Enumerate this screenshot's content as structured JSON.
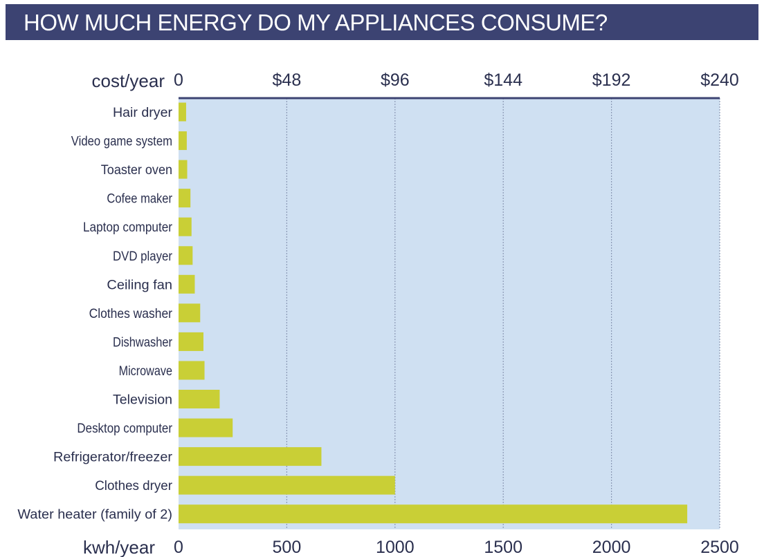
{
  "header": {
    "title": "HOW MUCH ENERGY DO MY APPLIANCES CONSUME?"
  },
  "colors": {
    "title_bg": "#3c4372",
    "plot_bg": "#cfe0f2",
    "bar": "#c9cf36",
    "text": "#2a2f4e"
  },
  "chart_data": {
    "type": "bar",
    "orientation": "horizontal",
    "title": "HOW MUCH ENERGY DO MY APPLIANCES CONSUME?",
    "xlabel": "kwh/year",
    "x2label": "cost/year",
    "xlim": [
      0,
      2500
    ],
    "x_ticks": [
      0,
      500,
      1000,
      1500,
      2000,
      2500
    ],
    "x_tick_labels": [
      "0",
      "500",
      "1000",
      "1500",
      "2000",
      "2500"
    ],
    "x2_tick_labels": [
      "0",
      "$48",
      "$96",
      "$144",
      "$192",
      "$240"
    ],
    "grid": "vertical",
    "categories": [
      "Hair dryer",
      "Video game system",
      "Toaster oven",
      "Cofee maker",
      "Laptop computer",
      "DVD player",
      "Ceiling fan",
      "Clothes washer",
      "Dishwasher",
      "Microwave",
      "Television",
      "Desktop computer",
      "Refrigerator/freezer",
      "Clothes dryer",
      "Water heater (family of 2)"
    ],
    "values": [
      35,
      38,
      40,
      55,
      60,
      65,
      75,
      100,
      115,
      120,
      190,
      250,
      660,
      1000,
      2350
    ]
  }
}
